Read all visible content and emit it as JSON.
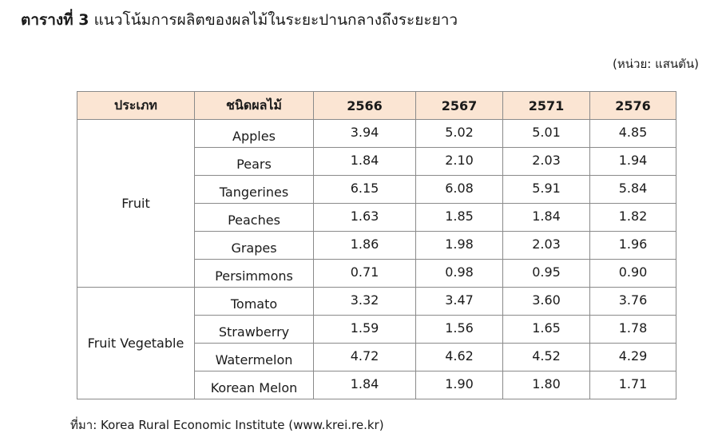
{
  "title": {
    "prefix": "ตารางที่ 3",
    "text": "แนวโน้มการผลิตของผลไม้ในระยะปานกลางถึงระยะยาว"
  },
  "unit_note": "(หน่วย: แสนตัน)",
  "table": {
    "headers": [
      "ประเภท",
      "ชนิดผลไม้",
      "2566",
      "2567",
      "2571",
      "2576"
    ],
    "groups": [
      {
        "category": "Fruit",
        "rows": [
          {
            "name": "Apples",
            "values": [
              "3.94",
              "5.02",
              "5.01",
              "4.85"
            ]
          },
          {
            "name": "Pears",
            "values": [
              "1.84",
              "2.10",
              "2.03",
              "1.94"
            ]
          },
          {
            "name": "Tangerines",
            "values": [
              "6.15",
              "6.08",
              "5.91",
              "5.84"
            ]
          },
          {
            "name": "Peaches",
            "values": [
              "1.63",
              "1.85",
              "1.84",
              "1.82"
            ]
          },
          {
            "name": "Grapes",
            "values": [
              "1.86",
              "1.98",
              "2.03",
              "1.96"
            ]
          },
          {
            "name": "Persimmons",
            "values": [
              "0.71",
              "0.98",
              "0.95",
              "0.90"
            ]
          }
        ]
      },
      {
        "category": "Fruit Vegetable",
        "rows": [
          {
            "name": "Tomato",
            "values": [
              "3.32",
              "3.47",
              "3.60",
              "3.76"
            ]
          },
          {
            "name": "Strawberry",
            "values": [
              "1.59",
              "1.56",
              "1.65",
              "1.78"
            ]
          },
          {
            "name": "Watermelon",
            "values": [
              "4.72",
              "4.62",
              "4.52",
              "4.29"
            ]
          },
          {
            "name": "Korean Melon",
            "values": [
              "1.84",
              "1.90",
              "1.80",
              "1.71"
            ]
          }
        ]
      }
    ]
  },
  "source": "ที่มา: Korea Rural Economic Institute (www.krei.re.kr)",
  "colors": {
    "header_background": "#fbe5d3",
    "border": "#8a8a8a"
  }
}
